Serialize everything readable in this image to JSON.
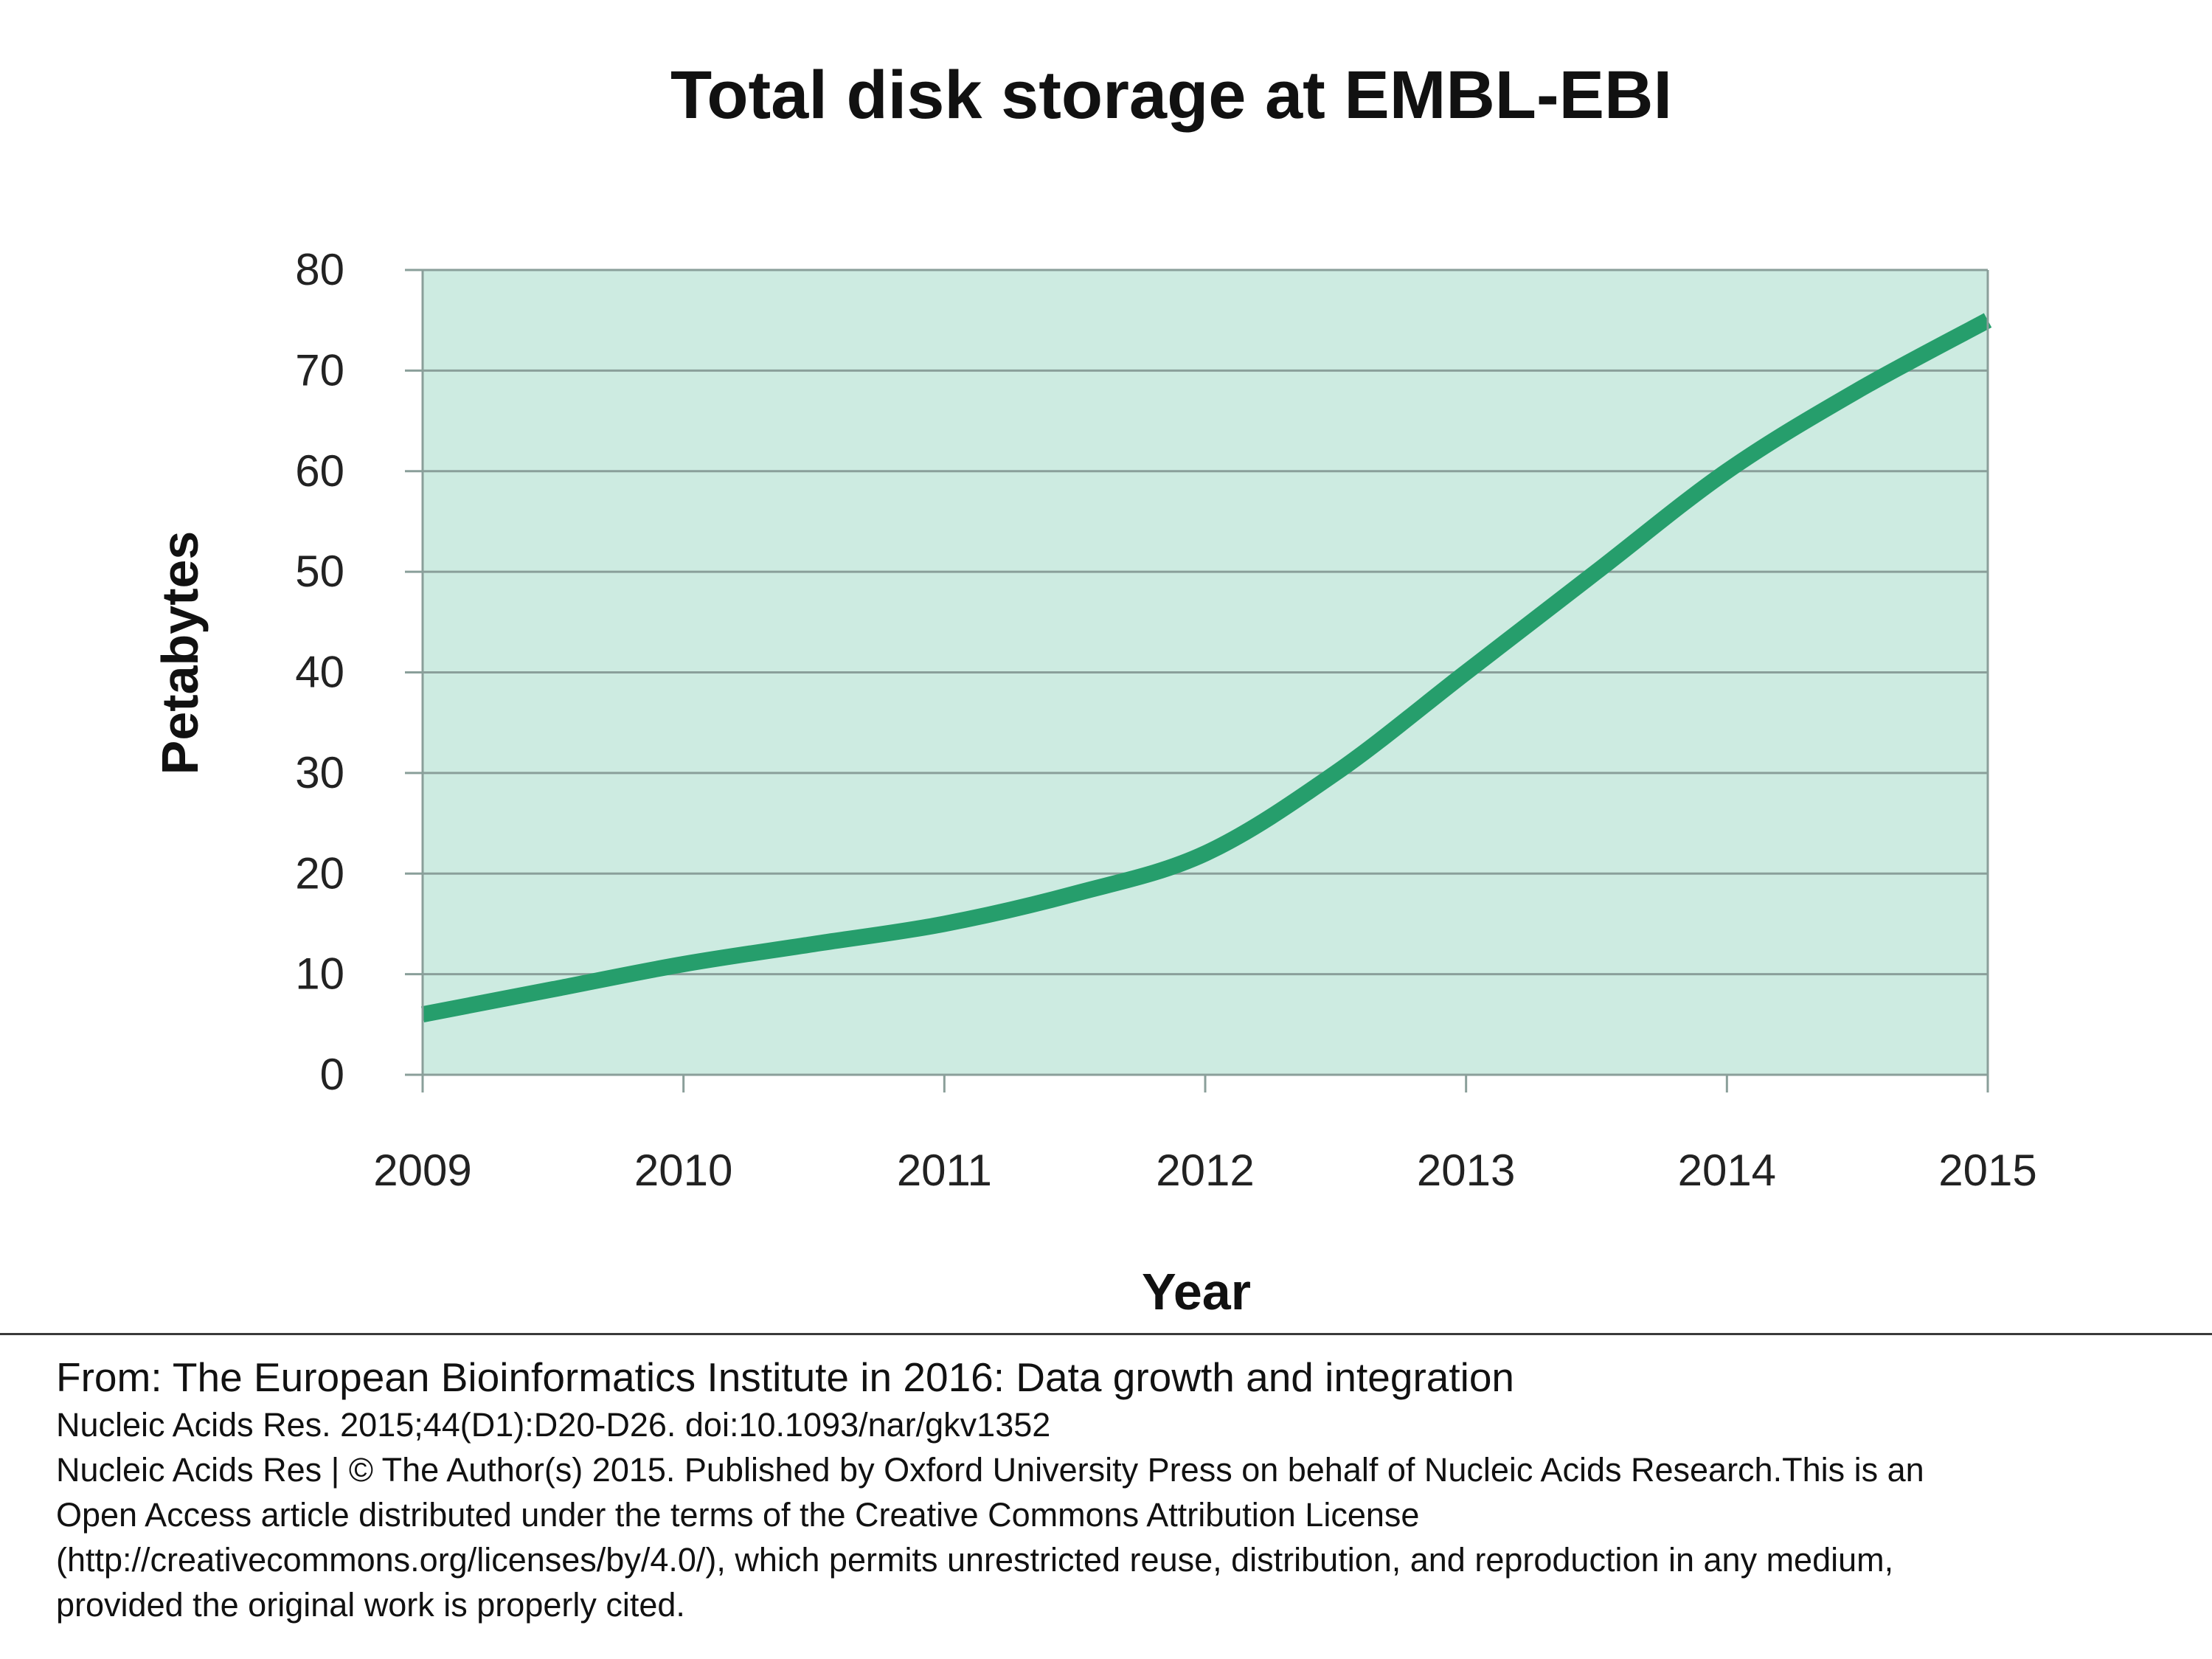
{
  "chart_data": {
    "type": "area",
    "title": "Total disk storage at EMBL-EBI",
    "xlabel": "Year",
    "ylabel": "Petabytes",
    "x_ticks": [
      "2009",
      "2010",
      "2011",
      "2012",
      "2013",
      "2014",
      "2015"
    ],
    "y_ticks": [
      "0",
      "10",
      "20",
      "30",
      "40",
      "50",
      "60",
      "70",
      "80"
    ],
    "xlim": [
      2009,
      2015
    ],
    "ylim": [
      0,
      80
    ],
    "grid": true,
    "series": [
      {
        "x": [
          2009,
          2009.5,
          2010,
          2010.5,
          2011,
          2011.5,
          2012,
          2012.5,
          2013,
          2013.5,
          2014,
          2014.5,
          2015
        ],
        "y": [
          6,
          8.5,
          11,
          13,
          15,
          18,
          22,
          30,
          40,
          50,
          60,
          68,
          75
        ],
        "color": "#269e6c"
      }
    ],
    "fill_color": "#cdebe1",
    "grid_color": "#8a9f9a"
  },
  "citation": {
    "from": "From: The European Bioinformatics Institute in 2016: Data growth and integration",
    "journal": "Nucleic Acids Res. 2015;44(D1):D20-D26. doi:10.1093/nar/gkv1352",
    "license_lines": [
      "Nucleic Acids Res | © The Author(s) 2015. Published by Oxford University Press on behalf of Nucleic Acids Research.This is an",
      "Open Access article distributed under the terms of the Creative Commons Attribution License",
      "(http://creativecommons.org/licenses/by/4.0/), which permits unrestricted reuse, distribution, and reproduction in any medium,",
      "provided the original work is properly cited."
    ]
  }
}
